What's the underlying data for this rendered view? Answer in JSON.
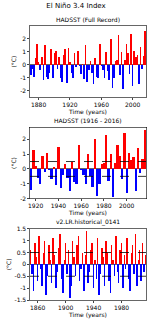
{
  "figure_title": "El Niño 3.4 Index",
  "chart_data": [
    {
      "type": "bar",
      "title": "HADSST (Full Record)",
      "x_label": "Time (years)",
      "y_label": "(°C)",
      "color": [
        "#ff0000",
        "#0000ff"
      ],
      "x": [
        1870,
        1872,
        1874,
        1876,
        1878,
        1880,
        1882,
        1884,
        1886,
        1888,
        1890,
        1892,
        1894,
        1896,
        1898,
        1900,
        1902,
        1904,
        1906,
        1908,
        1910,
        1912,
        1914,
        1916,
        1918,
        1920,
        1922,
        1924,
        1926,
        1928,
        1930,
        1932,
        1934,
        1936,
        1938,
        1940,
        1942,
        1944,
        1946,
        1948,
        1950,
        1952,
        1954,
        1956,
        1958,
        1960,
        1962,
        1964,
        1966,
        1968,
        1970,
        1972,
        1974,
        1976,
        1978,
        1980,
        1982,
        1984,
        1986,
        1988,
        1990,
        1992,
        1994,
        1996,
        1998,
        2000,
        2002,
        2004,
        2006,
        2008,
        2010,
        2012,
        2014,
        2016
      ],
      "values": [
        -0.8,
        -0.3,
        -0.9,
        0.5,
        1.6,
        0.2,
        -0.4,
        0.6,
        -1.2,
        1.5,
        -0.9,
        -1.1,
        -0.6,
        1.2,
        -1.0,
        0.9,
        1.1,
        -0.3,
        0.6,
        -1.0,
        -1.3,
        0.8,
        1.2,
        -1.4,
        1.3,
        0.2,
        -0.6,
        -1.0,
        0.9,
        -0.2,
        1.1,
        -0.1,
        -0.7,
        0.1,
        -1.1,
        1.5,
        -1.3,
        -0.4,
        0.3,
        -0.6,
        -1.5,
        0.5,
        -0.9,
        -1.0,
        1.6,
        -0.1,
        -0.4,
        -1.0,
        1.0,
        -0.5,
        -1.2,
        2.0,
        -1.8,
        -1.0,
        0.3,
        0.4,
        2.3,
        -0.8,
        1.0,
        -1.9,
        0.4,
        1.6,
        0.9,
        -0.7,
        2.4,
        -1.6,
        1.1,
        0.6,
        0.8,
        -1.5,
        1.4,
        -0.3,
        0.7,
        2.6
      ],
      "xlim": [
        1869,
        2017
      ],
      "xticks": [
        1880,
        1920,
        1960,
        2000
      ],
      "ylim": [
        -2.5,
        3
      ],
      "yticks": [
        -2,
        -1,
        0,
        1,
        2
      ]
    },
    {
      "type": "bar",
      "title": "HADSST (1916 - 2016)",
      "x_label": "Time (years)",
      "y_label": "(°C)",
      "color": [
        "#ff0000",
        "#0000ff"
      ],
      "x": [
        1916,
        1918,
        1920,
        1922,
        1924,
        1926,
        1928,
        1930,
        1932,
        1934,
        1936,
        1938,
        1940,
        1942,
        1944,
        1946,
        1948,
        1950,
        1952,
        1954,
        1956,
        1958,
        1960,
        1962,
        1964,
        1966,
        1968,
        1970,
        1972,
        1974,
        1976,
        1978,
        1980,
        1982,
        1984,
        1986,
        1988,
        1990,
        1992,
        1994,
        1996,
        1998,
        2000,
        2002,
        2004,
        2006,
        2008,
        2010,
        2012,
        2014,
        2016
      ],
      "values": [
        -1.4,
        1.3,
        0.2,
        -0.6,
        -1.0,
        0.9,
        -0.2,
        1.1,
        -0.1,
        -0.7,
        0.1,
        -1.1,
        1.5,
        -1.3,
        -0.4,
        0.3,
        -0.6,
        -1.5,
        0.5,
        -0.9,
        -1.0,
        1.6,
        -0.1,
        -0.4,
        -1.0,
        1.0,
        -0.5,
        -1.2,
        2.0,
        -1.8,
        -1.0,
        0.3,
        0.4,
        2.3,
        -0.8,
        1.0,
        -1.9,
        0.4,
        1.6,
        0.9,
        -0.7,
        2.4,
        -1.6,
        1.1,
        0.6,
        0.8,
        -1.5,
        1.4,
        -0.3,
        0.7,
        2.6
      ],
      "thresholds": [
        -0.5,
        0.5
      ],
      "xlim": [
        1915,
        2017
      ],
      "xticks": [
        1920,
        1940,
        1960,
        1980,
        2000
      ],
      "ylim": [
        -2,
        2.8
      ],
      "yticks": [
        -2,
        -1,
        0,
        1,
        2
      ]
    },
    {
      "type": "bar",
      "title": "v2.LR.historical_0141",
      "x_label": "Time (years)",
      "y_label": "(°C)",
      "color": [
        "#ff0000",
        "#0000ff"
      ],
      "x": [
        1850,
        1852,
        1854,
        1856,
        1858,
        1860,
        1862,
        1864,
        1866,
        1868,
        1870,
        1872,
        1874,
        1876,
        1878,
        1880,
        1882,
        1884,
        1886,
        1888,
        1890,
        1892,
        1894,
        1896,
        1898,
        1900,
        1902,
        1904,
        1906,
        1908,
        1910,
        1912,
        1914,
        1916,
        1918,
        1920,
        1922,
        1924,
        1926,
        1928,
        1930,
        1932,
        1934,
        1936,
        1938,
        1940,
        1942,
        1944,
        1946,
        1948,
        1950,
        1952,
        1954,
        1956,
        1958,
        1960,
        1962,
        1964,
        1966,
        1968,
        1970,
        1972,
        1974,
        1976,
        1978,
        1980,
        1982,
        1984,
        1986,
        1988,
        1990,
        1992,
        1994,
        1996,
        1998,
        2000,
        2002,
        2004,
        2006,
        2008,
        2010,
        2012,
        2014
      ],
      "values": [
        0.6,
        -0.4,
        -1.1,
        0.9,
        0.3,
        -0.7,
        1.2,
        -0.2,
        -0.9,
        0.5,
        1.0,
        -1.3,
        -0.5,
        0.8,
        0.2,
        -0.8,
        1.1,
        0.4,
        -1.0,
        -0.3,
        0.7,
        1.3,
        -0.6,
        -1.2,
        0.2,
        0.9,
        -0.4,
        0.6,
        -1.4,
        -0.9,
        1.0,
        0.3,
        -0.5,
        0.8,
        1.2,
        -0.7,
        -0.2,
        0.5,
        -1.1,
        0.4,
        1.4,
        -0.8,
        -0.3,
        0.6,
        0.9,
        -1.0,
        0.2,
        -0.6,
        1.1,
        -1.3,
        -0.4,
        0.7,
        0.3,
        -0.9,
        1.0,
        0.5,
        -0.7,
        -1.2,
        0.8,
        0.2,
        -0.5,
        1.2,
        -0.3,
        -0.8,
        0.6,
        0.9,
        -1.0,
        0.4,
        -0.2,
        1.1,
        -0.6,
        -1.1,
        0.5,
        0.8,
        -0.4,
        1.3,
        -0.9,
        0.2,
        0.6,
        -0.7,
        0.9,
        -0.3,
        0.4
      ],
      "thresholds": [
        -0.5,
        0.5
      ],
      "xlim": [
        1849,
        2015
      ],
      "xticks": [
        1860,
        1900,
        1940,
        1980
      ],
      "ylim": [
        -1.5,
        1.5
      ],
      "yticks": [
        -1.5,
        -1,
        -0.5,
        0,
        0.5,
        1,
        1.5
      ]
    }
  ]
}
